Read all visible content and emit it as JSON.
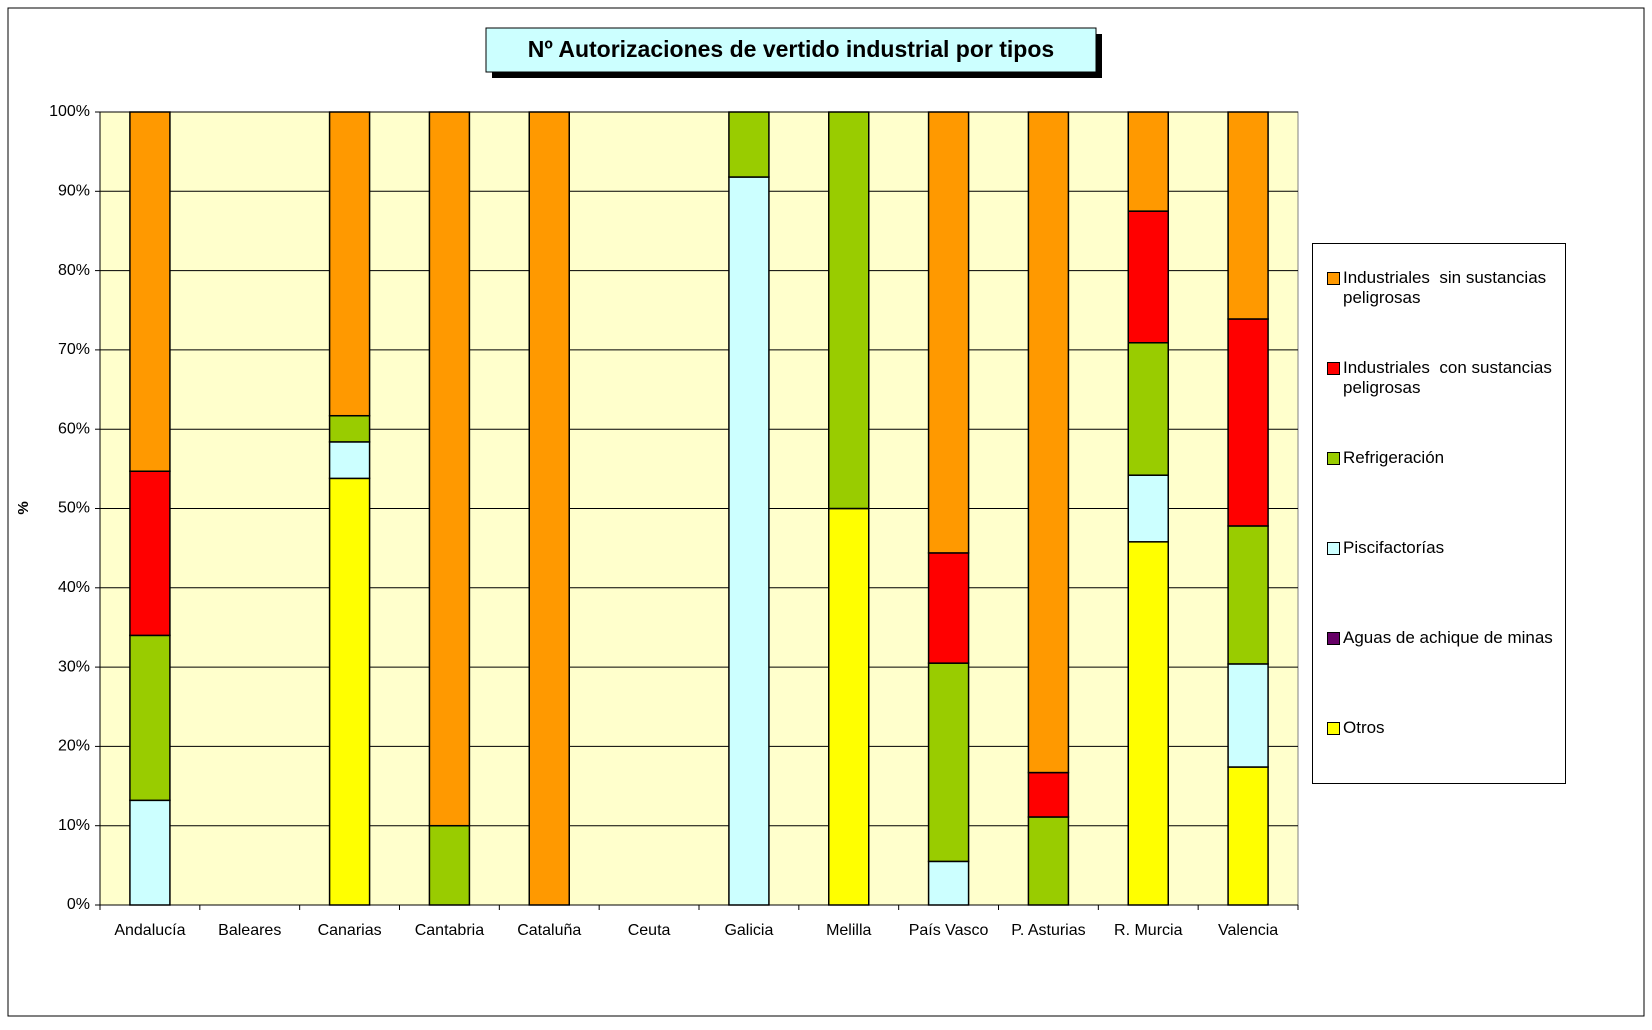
{
  "chart_data": {
    "type": "stacked_bar",
    "title": "Nº Autorizaciones de vertido industrial por tipos",
    "y_label": "%",
    "categories": [
      "Andalucía",
      "Baleares",
      "Canarias",
      "Cantabria",
      "Cataluña",
      "Ceuta",
      "Galicia",
      "Melilla",
      "País Vasco",
      "P. Asturias",
      "R. Murcia",
      "Valencia"
    ],
    "series": [
      {
        "name": "Otros",
        "color": "#ffff00",
        "values": [
          0,
          0,
          53.8,
          0,
          0,
          0,
          0,
          50,
          0,
          0,
          45.8,
          17.4
        ]
      },
      {
        "name": "Aguas de achique de minas",
        "color": "#660066",
        "values": [
          0,
          0,
          0,
          0,
          0,
          0,
          0,
          0,
          0,
          0,
          0,
          0
        ]
      },
      {
        "name": "Piscifactorías",
        "color": "#ccffff",
        "values": [
          13.2,
          0,
          4.6,
          0,
          0,
          0,
          91.8,
          0,
          5.5,
          0,
          8.4,
          13
        ]
      },
      {
        "name": "Refrigeración",
        "color": "#99cc00",
        "values": [
          20.8,
          0,
          3.3,
          10,
          0,
          0,
          8.2,
          50,
          25,
          11.1,
          16.7,
          17.4
        ]
      },
      {
        "name": "Industriales  con sustancias peligrosas",
        "color": "#ff0000",
        "values": [
          20.7,
          0,
          0,
          0,
          0,
          0,
          0,
          0,
          13.9,
          5.6,
          16.6,
          26.1
        ]
      },
      {
        "name": "Industriales  sin sustancias peligrosas",
        "color": "#ff9900",
        "values": [
          45.3,
          0,
          38.3,
          90,
          100,
          0,
          0,
          0,
          55.6,
          83.3,
          12.5,
          26.1
        ]
      }
    ],
    "ylim": [
      0,
      100
    ],
    "yticks": [
      {
        "value": 0,
        "label": "0%"
      },
      {
        "value": 10,
        "label": "10%"
      },
      {
        "value": 20,
        "label": "20%"
      },
      {
        "value": 30,
        "label": "30%"
      },
      {
        "value": 40,
        "label": "40%"
      },
      {
        "value": 50,
        "label": "50%"
      },
      {
        "value": 60,
        "label": "60%"
      },
      {
        "value": 70,
        "label": "70%"
      },
      {
        "value": 80,
        "label": "80%"
      },
      {
        "value": 90,
        "label": "90%"
      },
      {
        "value": 100,
        "label": "100%"
      }
    ],
    "grid": true,
    "plot_background": "#ffffcc",
    "legend": "right"
  }
}
